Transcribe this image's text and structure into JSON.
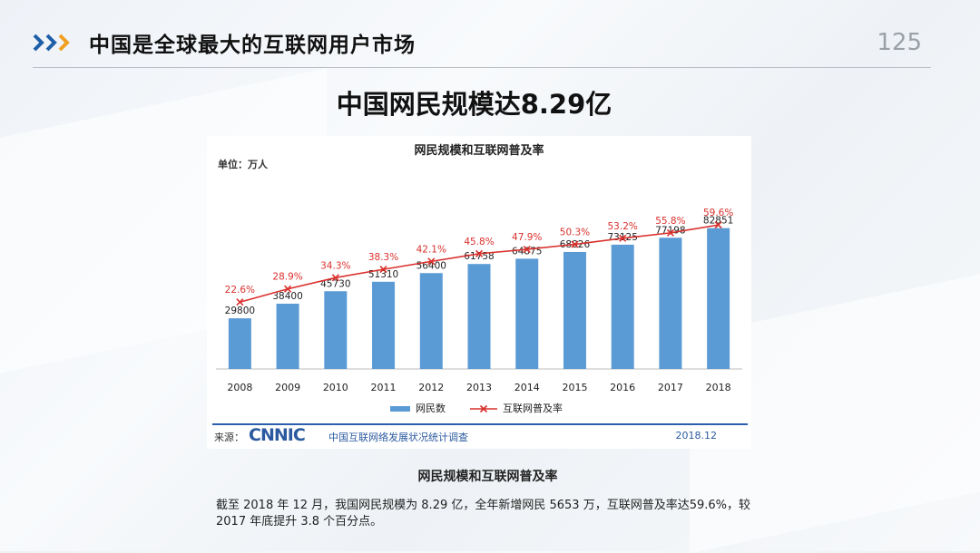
{
  "slide": {
    "title": "中国是全球最大的互联网用户市场",
    "page_number": "125",
    "headline": "中国网民规模达8.29亿",
    "caption": "网民规模和互联网普及率",
    "body_text": "截至 2018 年 12 月，我国网民规模为 8.29 亿，全年新增网民 5653 万，互联网普及率达59.6%，较 2017 年底提升 3.8 个百分点。",
    "accent_color": "#f0a020",
    "chevron_color": "#1f5fa8"
  },
  "source": {
    "label": "来源：",
    "logo_text": "CNNIC",
    "org": "中国互联网络发展状况统计调查",
    "date": "2018.12"
  },
  "chart_data": {
    "type": "bar",
    "title": "网民规模和互联网普及率",
    "unit_label": "单位：万人",
    "categories": [
      "2008",
      "2009",
      "2010",
      "2011",
      "2012",
      "2013",
      "2014",
      "2015",
      "2016",
      "2017",
      "2018"
    ],
    "series": [
      {
        "name": "网民数",
        "type": "bar",
        "color": "#5b9bd5",
        "values": [
          29800,
          38400,
          45730,
          51310,
          56400,
          61758,
          64875,
          68826,
          73125,
          77198,
          82851
        ]
      },
      {
        "name": "互联网普及率",
        "type": "line",
        "color": "#d9302c",
        "values": [
          22.6,
          28.9,
          34.3,
          38.3,
          42.1,
          45.8,
          47.9,
          50.3,
          53.2,
          55.8,
          59.6
        ],
        "labels": [
          "22.6%",
          "28.9%",
          "34.3%",
          "38.3%",
          "42.1%",
          "45.8%",
          "47.9%",
          "50.3%",
          "53.2%",
          "55.8%",
          "59.6%"
        ]
      }
    ],
    "ylim": [
      0,
      100000
    ],
    "rate_ylim": [
      0,
      100
    ],
    "legend_position": "bottom",
    "grid": false
  }
}
